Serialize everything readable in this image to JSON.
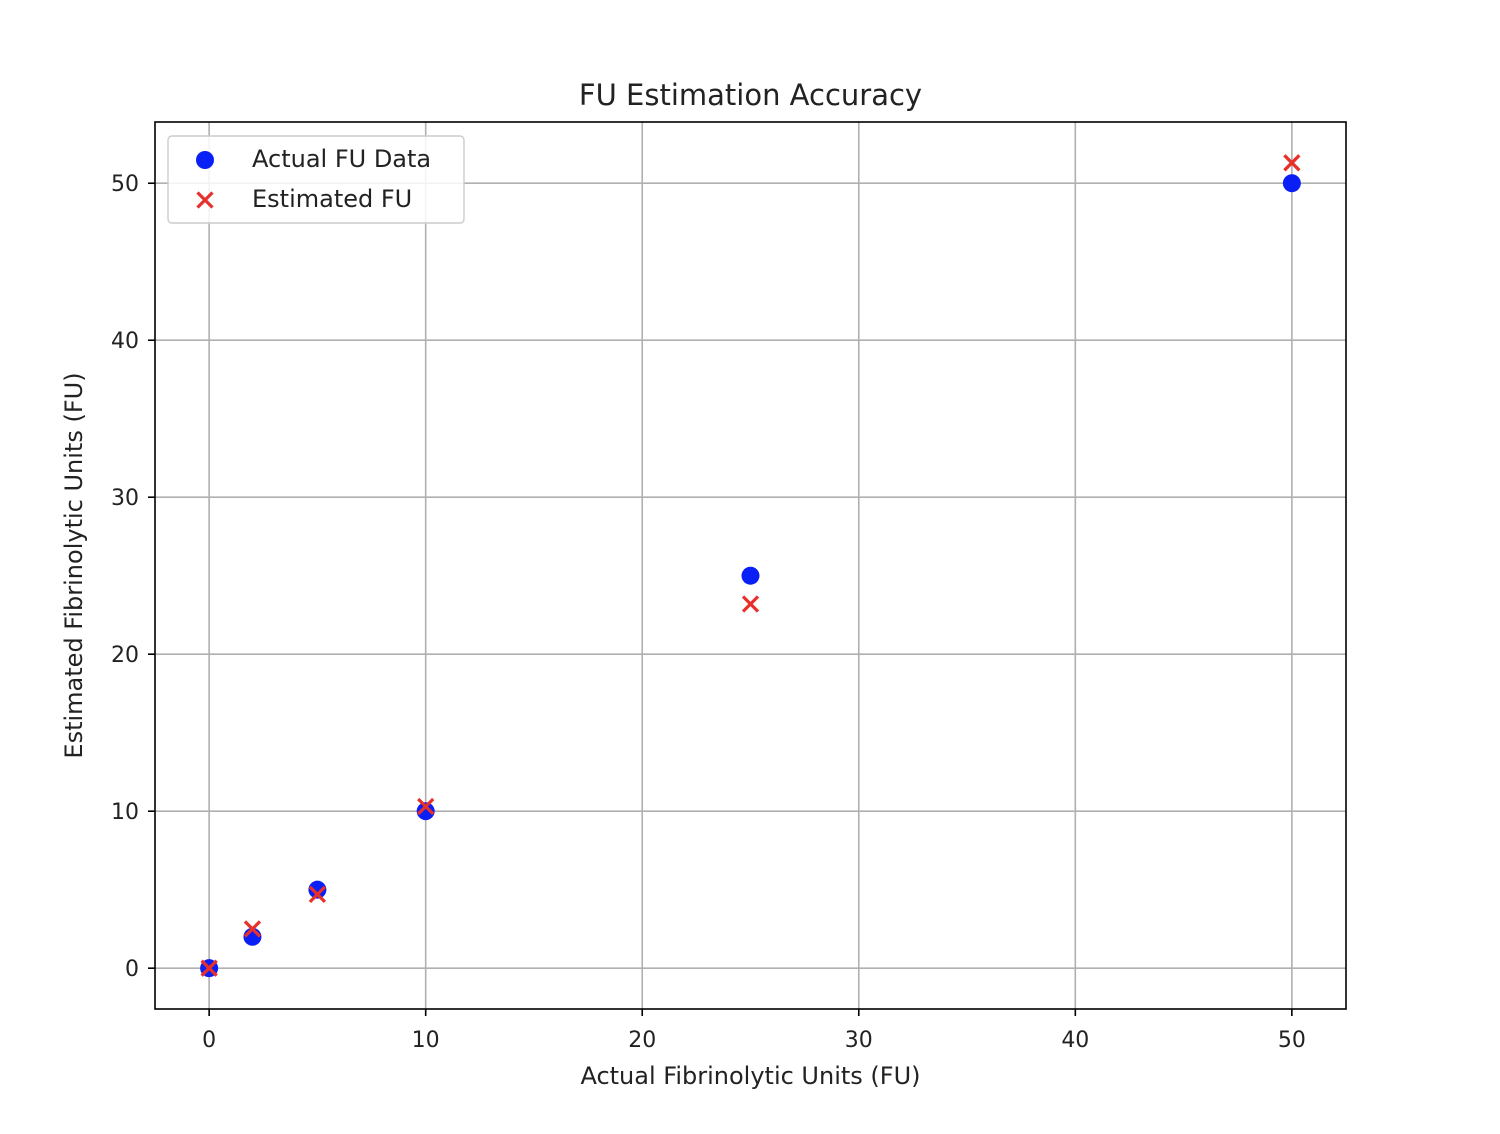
{
  "chart_data": {
    "type": "scatter",
    "title": "FU Estimation Accuracy",
    "xlabel": "Actual Fibrinolytic Units (FU)",
    "ylabel": "Estimated Fibrinolytic Units (FU)",
    "xlim": [
      -2.5,
      52.5
    ],
    "ylim": [
      -2.6,
      53.9
    ],
    "xticks": [
      0,
      10,
      20,
      30,
      40,
      50
    ],
    "yticks": [
      0,
      10,
      20,
      30,
      40,
      50
    ],
    "xtick_labels": [
      "0",
      "10",
      "20",
      "30",
      "40",
      "50"
    ],
    "ytick_labels": [
      "0",
      "10",
      "20",
      "30",
      "40",
      "50"
    ],
    "grid": true,
    "legend_position": "top-left",
    "series": [
      {
        "name": "Actual FU Data",
        "marker": "circle",
        "color": "#0a1ff5",
        "x": [
          0,
          2,
          5,
          10,
          25,
          50
        ],
        "y": [
          0,
          2,
          5,
          10,
          25,
          50
        ]
      },
      {
        "name": "Estimated FU",
        "marker": "x",
        "color": "#e8302a",
        "x": [
          0,
          2,
          5,
          10,
          25,
          50
        ],
        "y": [
          0,
          2.5,
          4.7,
          10.3,
          23.2,
          51.3
        ]
      }
    ]
  }
}
